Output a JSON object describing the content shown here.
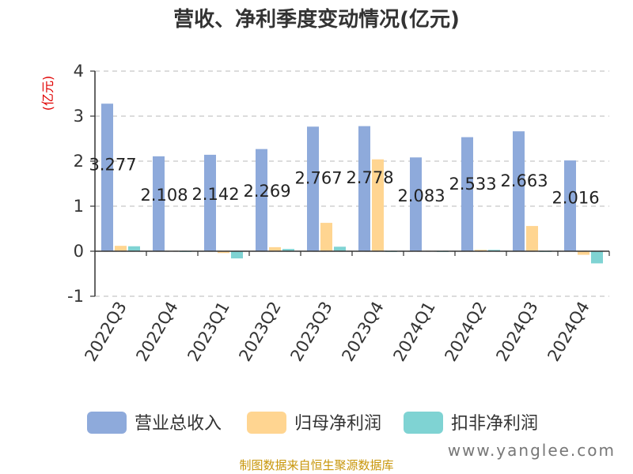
{
  "title": "营收、净利季度变动情况(亿元)",
  "source": "制图数据来自恒生聚源数据库",
  "watermark": "www.yanglee.com",
  "chart_data": {
    "type": "bar",
    "title": "营收、净利季度变动情况(亿元)",
    "ylabel": "(亿元)",
    "ylim": [
      -1,
      4
    ],
    "yticks": [
      -1,
      0,
      1,
      2,
      3,
      4
    ],
    "grid": true,
    "legend_position": "bottom",
    "categories": [
      "2022Q3",
      "2022Q4",
      "2023Q1",
      "2023Q2",
      "2023Q3",
      "2023Q4",
      "2024Q1",
      "2024Q2",
      "2024Q3",
      "2024Q4"
    ],
    "series": [
      {
        "name": "营业总收入",
        "color": "#8eaadb",
        "values": [
          3.277,
          2.108,
          2.142,
          2.269,
          2.767,
          2.778,
          2.083,
          2.533,
          2.663,
          2.016
        ],
        "labels": [
          "3.277",
          "2.108",
          "2.142",
          "2.269",
          "2.767",
          "2.778",
          "2.083",
          "2.533",
          "2.663",
          "2.016"
        ]
      },
      {
        "name": "归母净利润",
        "color": "#ffd591",
        "values": [
          0.12,
          0.01,
          -0.04,
          0.09,
          0.63,
          2.04,
          0.01,
          0.03,
          0.56,
          -0.08
        ]
      },
      {
        "name": "扣非净利润",
        "color": "#7fd3d3",
        "values": [
          0.11,
          -0.01,
          -0.16,
          0.05,
          0.1,
          0.0,
          -0.01,
          0.03,
          0.0,
          -0.27
        ]
      }
    ]
  }
}
